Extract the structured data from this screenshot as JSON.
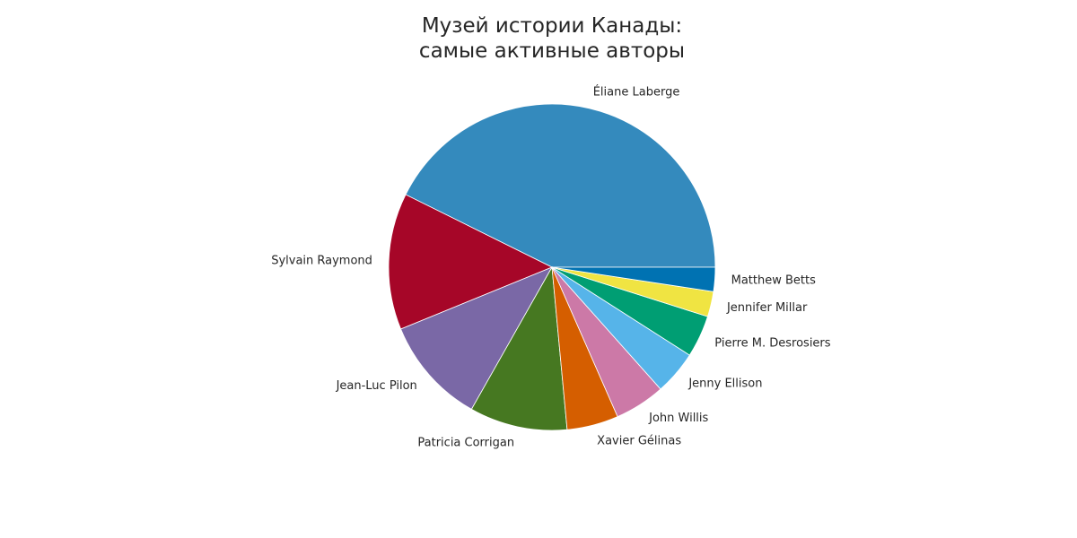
{
  "chart_data": {
    "type": "pie",
    "title_lines": [
      "Музей истории Канады:",
      "самые активные авторы"
    ],
    "start_angle_deg": 0,
    "direction": "counterclockwise",
    "slices": [
      {
        "label": "Éliane Laberge",
        "value": 41.0,
        "color": "#348ABD"
      },
      {
        "label": "Sylvain Raymond",
        "value": 13.0,
        "color": "#A60628"
      },
      {
        "label": "Jean-Luc Pilon",
        "value": 10.2,
        "color": "#7A68A6"
      },
      {
        "label": "Patricia Corrigan",
        "value": 9.3,
        "color": "#467821"
      },
      {
        "label": "Xavier Gélinas",
        "value": 4.9,
        "color": "#D55E00"
      },
      {
        "label": "John Willis",
        "value": 4.8,
        "color": "#CC79A7"
      },
      {
        "label": "Jenny Ellison",
        "value": 4.2,
        "color": "#56B4E9"
      },
      {
        "label": "Pierre M. Desrosiers",
        "value": 4.0,
        "color": "#009E73"
      },
      {
        "label": "Jennifer Millar",
        "value": 2.4,
        "color": "#F0E442"
      },
      {
        "label": "Matthew Betts",
        "value": 2.3,
        "color": "#0072B2"
      }
    ]
  }
}
